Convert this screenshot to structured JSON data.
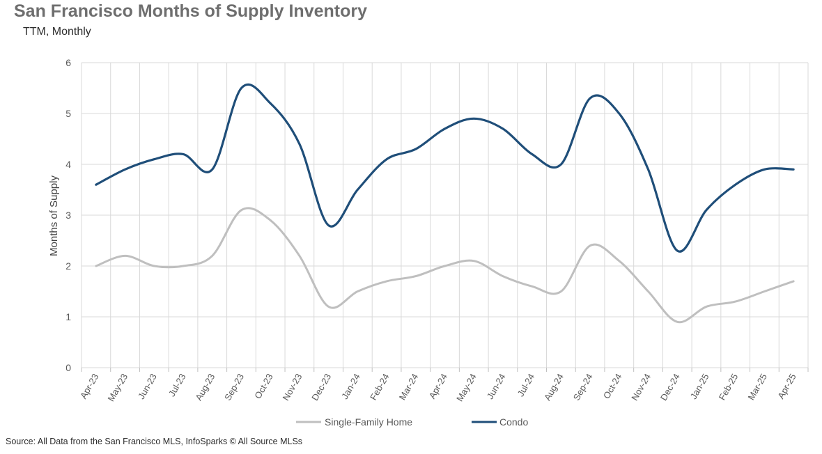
{
  "chart_data": {
    "type": "line",
    "title": "San Francisco Months of Supply Inventory",
    "subtitle": "TTM, Monthly",
    "ylabel": "Months of Supply",
    "xlabel": "",
    "ylim": [
      0,
      6
    ],
    "yticks": [
      "0",
      "1",
      "2",
      "3",
      "4",
      "5",
      "6"
    ],
    "grid": true,
    "legend_position": "bottom",
    "categories": [
      "Apr-23",
      "May-23",
      "Jun-23",
      "Jul-23",
      "Aug-23",
      "Sep-23",
      "Oct-23",
      "Nov-23",
      "Dec-23",
      "Jan-24",
      "Feb-24",
      "Mar-24",
      "Apr-24",
      "May-24",
      "Jun-24",
      "Jul-24",
      "Aug-24",
      "Sep-24",
      "Oct-24",
      "Nov-24",
      "Dec-24",
      "Jan-25",
      "Feb-25",
      "Mar-25",
      "Apr-25"
    ],
    "series": [
      {
        "name": "Single-Family Home",
        "color": "#bfbfbf",
        "values": [
          2.0,
          2.2,
          2.0,
          2.0,
          2.2,
          3.1,
          2.9,
          2.2,
          1.2,
          1.5,
          1.7,
          1.8,
          2.0,
          2.1,
          1.8,
          1.6,
          1.5,
          2.4,
          2.1,
          1.5,
          0.9,
          1.2,
          1.3,
          1.5,
          1.7
        ]
      },
      {
        "name": "Condo",
        "color": "#1f4e79",
        "values": [
          3.6,
          3.9,
          4.1,
          4.2,
          3.9,
          5.5,
          5.2,
          4.4,
          2.8,
          3.5,
          4.1,
          4.3,
          4.7,
          4.9,
          4.7,
          4.2,
          4.0,
          5.3,
          5.0,
          3.9,
          2.3,
          3.1,
          3.6,
          3.9,
          3.9
        ]
      }
    ]
  },
  "source": "Source: All Data from the San Francisco MLS, InfoSparks © All Source MLSs"
}
